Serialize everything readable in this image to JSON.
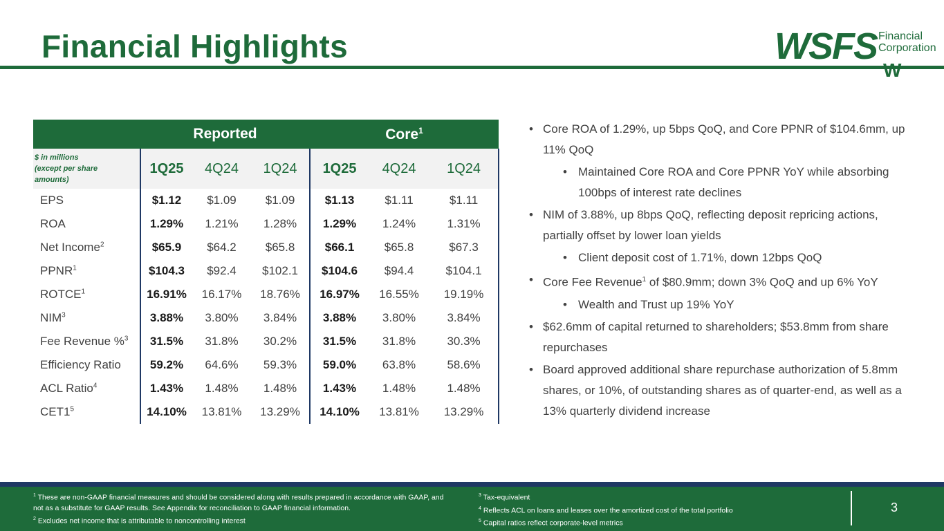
{
  "title": "Financial Highlights",
  "logo": {
    "brand": "WSFS",
    "line1": "Financial",
    "line2": "Corporation",
    "mark": "W"
  },
  "table": {
    "group_reported": "Reported",
    "group_core": "Core",
    "group_core_sup": "1",
    "row_header_label_1": "$ in millions",
    "row_header_label_2": "(except per share",
    "row_header_label_3": "amounts)",
    "periods": [
      "1Q25",
      "4Q24",
      "1Q24",
      "1Q25",
      "4Q24",
      "1Q24"
    ],
    "rows": [
      {
        "label": "EPS",
        "sup": "",
        "values": [
          "$1.12",
          "$1.09",
          "$1.09",
          "$1.13",
          "$1.11",
          "$1.11"
        ]
      },
      {
        "label": "ROA",
        "sup": "",
        "values": [
          "1.29%",
          "1.21%",
          "1.28%",
          "1.29%",
          "1.24%",
          "1.31%"
        ]
      },
      {
        "label": "Net Income",
        "sup": "2",
        "values": [
          "$65.9",
          "$64.2",
          "$65.8",
          "$66.1",
          "$65.8",
          "$67.3"
        ]
      },
      {
        "label": "PPNR",
        "sup": "1",
        "values": [
          "$104.3",
          "$92.4",
          "$102.1",
          "$104.6",
          "$94.4",
          "$104.1"
        ]
      },
      {
        "label": "ROTCE",
        "sup": "1",
        "values": [
          "16.91%",
          "16.17%",
          "18.76%",
          "16.97%",
          "16.55%",
          "19.19%"
        ]
      },
      {
        "label": "NIM",
        "sup": "3",
        "values": [
          "3.88%",
          "3.80%",
          "3.84%",
          "3.88%",
          "3.80%",
          "3.84%"
        ]
      },
      {
        "label": "Fee Revenue %",
        "sup": "3",
        "values": [
          "31.5%",
          "31.8%",
          "30.2%",
          "31.5%",
          "31.8%",
          "30.3%"
        ]
      },
      {
        "label": "Efficiency Ratio",
        "sup": "",
        "values": [
          "59.2%",
          "64.6%",
          "59.3%",
          "59.0%",
          "63.8%",
          "58.6%"
        ]
      },
      {
        "label": "ACL Ratio",
        "sup": "4",
        "values": [
          "1.43%",
          "1.48%",
          "1.48%",
          "1.43%",
          "1.48%",
          "1.48%"
        ]
      },
      {
        "label": "CET1",
        "sup": "5",
        "values": [
          "14.10%",
          "13.81%",
          "13.29%",
          "14.10%",
          "13.81%",
          "13.29%"
        ]
      }
    ]
  },
  "bullets": {
    "b1": "Core ROA of 1.29%, up 5bps QoQ, and Core PPNR of $104.6mm, up 11% QoQ",
    "b1a": "Maintained Core ROA and Core PPNR YoY while absorbing 100bps of interest rate declines",
    "b2": "NIM of 3.88%, up 8bps QoQ, reflecting deposit repricing actions, partially offset by lower loan yields",
    "b2a": "Client deposit cost of 1.71%, down 12bps QoQ",
    "b3_pre": "Core Fee Revenue",
    "b3_sup": "1",
    "b3_post": " of $80.9mm; down 3% QoQ and up 6% YoY",
    "b3a": "Wealth and Trust up 19% YoY",
    "b4": "$62.6mm of capital returned to shareholders; $53.8mm from share repurchases",
    "b5": "Board approved additional share repurchase authorization of 5.8mm shares, or 10%, of outstanding shares as of quarter-end, as well as a 13% quarterly dividend increase"
  },
  "footnotes": {
    "f1_num": "1",
    "f1": "These are non-GAAP financial measures and should be considered along with results prepared in accordance with GAAP, and not as a substitute for GAAP results.  See Appendix for reconciliation to GAAP financial information.",
    "f2_num": "2",
    "f2": "Excludes net income that is attributable to noncontrolling interest",
    "f3_num": "3",
    "f3": "Tax-equivalent",
    "f4_num": "4",
    "f4": "Reflects ACL on loans and leases over the amortized cost of the total portfolio",
    "f5_num": "5",
    "f5": "Capital ratios reflect corporate-level metrics"
  },
  "page_number": "3"
}
